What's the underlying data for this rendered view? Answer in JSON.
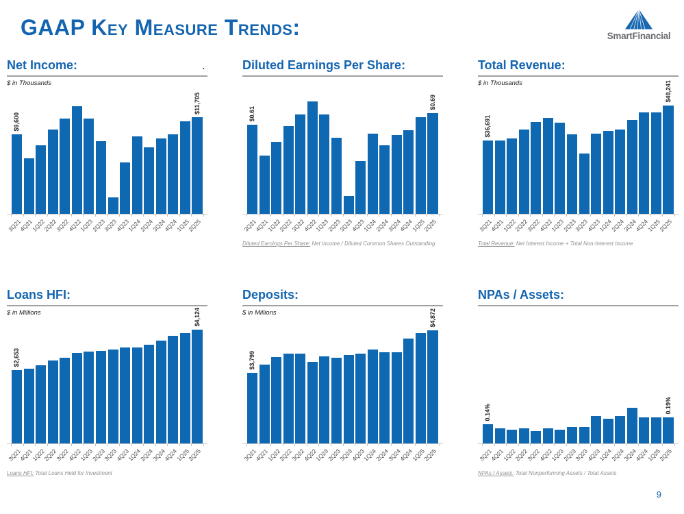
{
  "page": {
    "title": "GAAP Key Measure Trends:",
    "page_number": "9",
    "logo_text": "SmartFinancial",
    "stray_mark": ".",
    "accent_blue": "#1465b0",
    "bar_blue": "#0f68b2"
  },
  "categories": [
    "3Q21",
    "4Q21",
    "1Q22",
    "2Q22",
    "3Q22",
    "4Q22",
    "1Q23",
    "2Q23",
    "3Q23",
    "4Q23",
    "1Q24",
    "2Q24",
    "3Q24",
    "4Q24",
    "1Q25",
    "2Q25"
  ],
  "chart_data": [
    {
      "type": "bar",
      "title": "Net Income:",
      "subtitle": "$ in Thousands",
      "first_label": "$9,600",
      "last_label": "$11,705",
      "values": [
        9600,
        6700,
        8300,
        10200,
        11500,
        13000,
        11500,
        8800,
        2000,
        6200,
        9400,
        8000,
        9100,
        9600,
        11200,
        11705
      ],
      "ylim": [
        0,
        14500
      ],
      "footnote_lead": "",
      "footnote_rest": ""
    },
    {
      "type": "bar",
      "title": "Diluted Earnings Per Share:",
      "subtitle": "",
      "first_label": "$0.61",
      "last_label": "$0.69",
      "values": [
        0.61,
        0.4,
        0.49,
        0.6,
        0.68,
        0.77,
        0.68,
        0.52,
        0.12,
        0.36,
        0.55,
        0.47,
        0.54,
        0.57,
        0.66,
        0.69
      ],
      "ylim": [
        0,
        0.82
      ],
      "footnote_lead": "Diluted Earnings Per Share:",
      "footnote_rest": " Net Income / Diluted Common Shares Outstanding"
    },
    {
      "type": "bar",
      "title": "Total Revenue:",
      "subtitle": "$ in Thousands",
      "first_label": "$36,691",
      "last_label": "$49,241",
      "values": [
        36691,
        36700,
        37300,
        40500,
        43200,
        44800,
        43100,
        38800,
        31800,
        39100,
        40000,
        40500,
        44100,
        46700,
        46700,
        49241
      ],
      "ylim": [
        10000,
        53500
      ],
      "footnote_lead": "Total Revenue:",
      "footnote_rest": " Net Interest Income + Total Non-Interest Income"
    },
    {
      "type": "bar",
      "title": "Loans HFI:",
      "subtitle": "$ in Millions",
      "first_label": "$2,653",
      "last_label": "$4,124",
      "values": [
        2653,
        2716,
        2835,
        3009,
        3112,
        3286,
        3325,
        3365,
        3404,
        3468,
        3483,
        3578,
        3729,
        3903,
        3997,
        4124
      ],
      "ylim": [
        0,
        4350
      ],
      "footnote_lead": "Loans HFI:",
      "footnote_rest": " Total Loans Held for Investment"
    },
    {
      "type": "bar",
      "title": "Deposits:",
      "subtitle": "$ in Millions",
      "first_label": "$3,799",
      "last_label": "$4,872",
      "values": [
        3799,
        4010,
        4190,
        4290,
        4290,
        4070,
        4215,
        4180,
        4240,
        4280,
        4380,
        4310,
        4325,
        4670,
        4800,
        4872
      ],
      "ylim": [
        2000,
        5050
      ],
      "footnote_lead": "",
      "footnote_rest": ""
    },
    {
      "type": "bar",
      "title": "NPAs / Assets:",
      "subtitle": "",
      "first_label": "0.14%",
      "last_label": "0.19%",
      "values": [
        0.14,
        0.11,
        0.1,
        0.11,
        0.09,
        0.11,
        0.1,
        0.12,
        0.12,
        0.2,
        0.18,
        0.2,
        0.26,
        0.19,
        0.19,
        0.19
      ],
      "ylim": [
        0,
        0.88
      ],
      "footnote_lead": "NPAs / Assets:",
      "footnote_rest": " Total Nonperforming Assets / Total Assets"
    }
  ]
}
